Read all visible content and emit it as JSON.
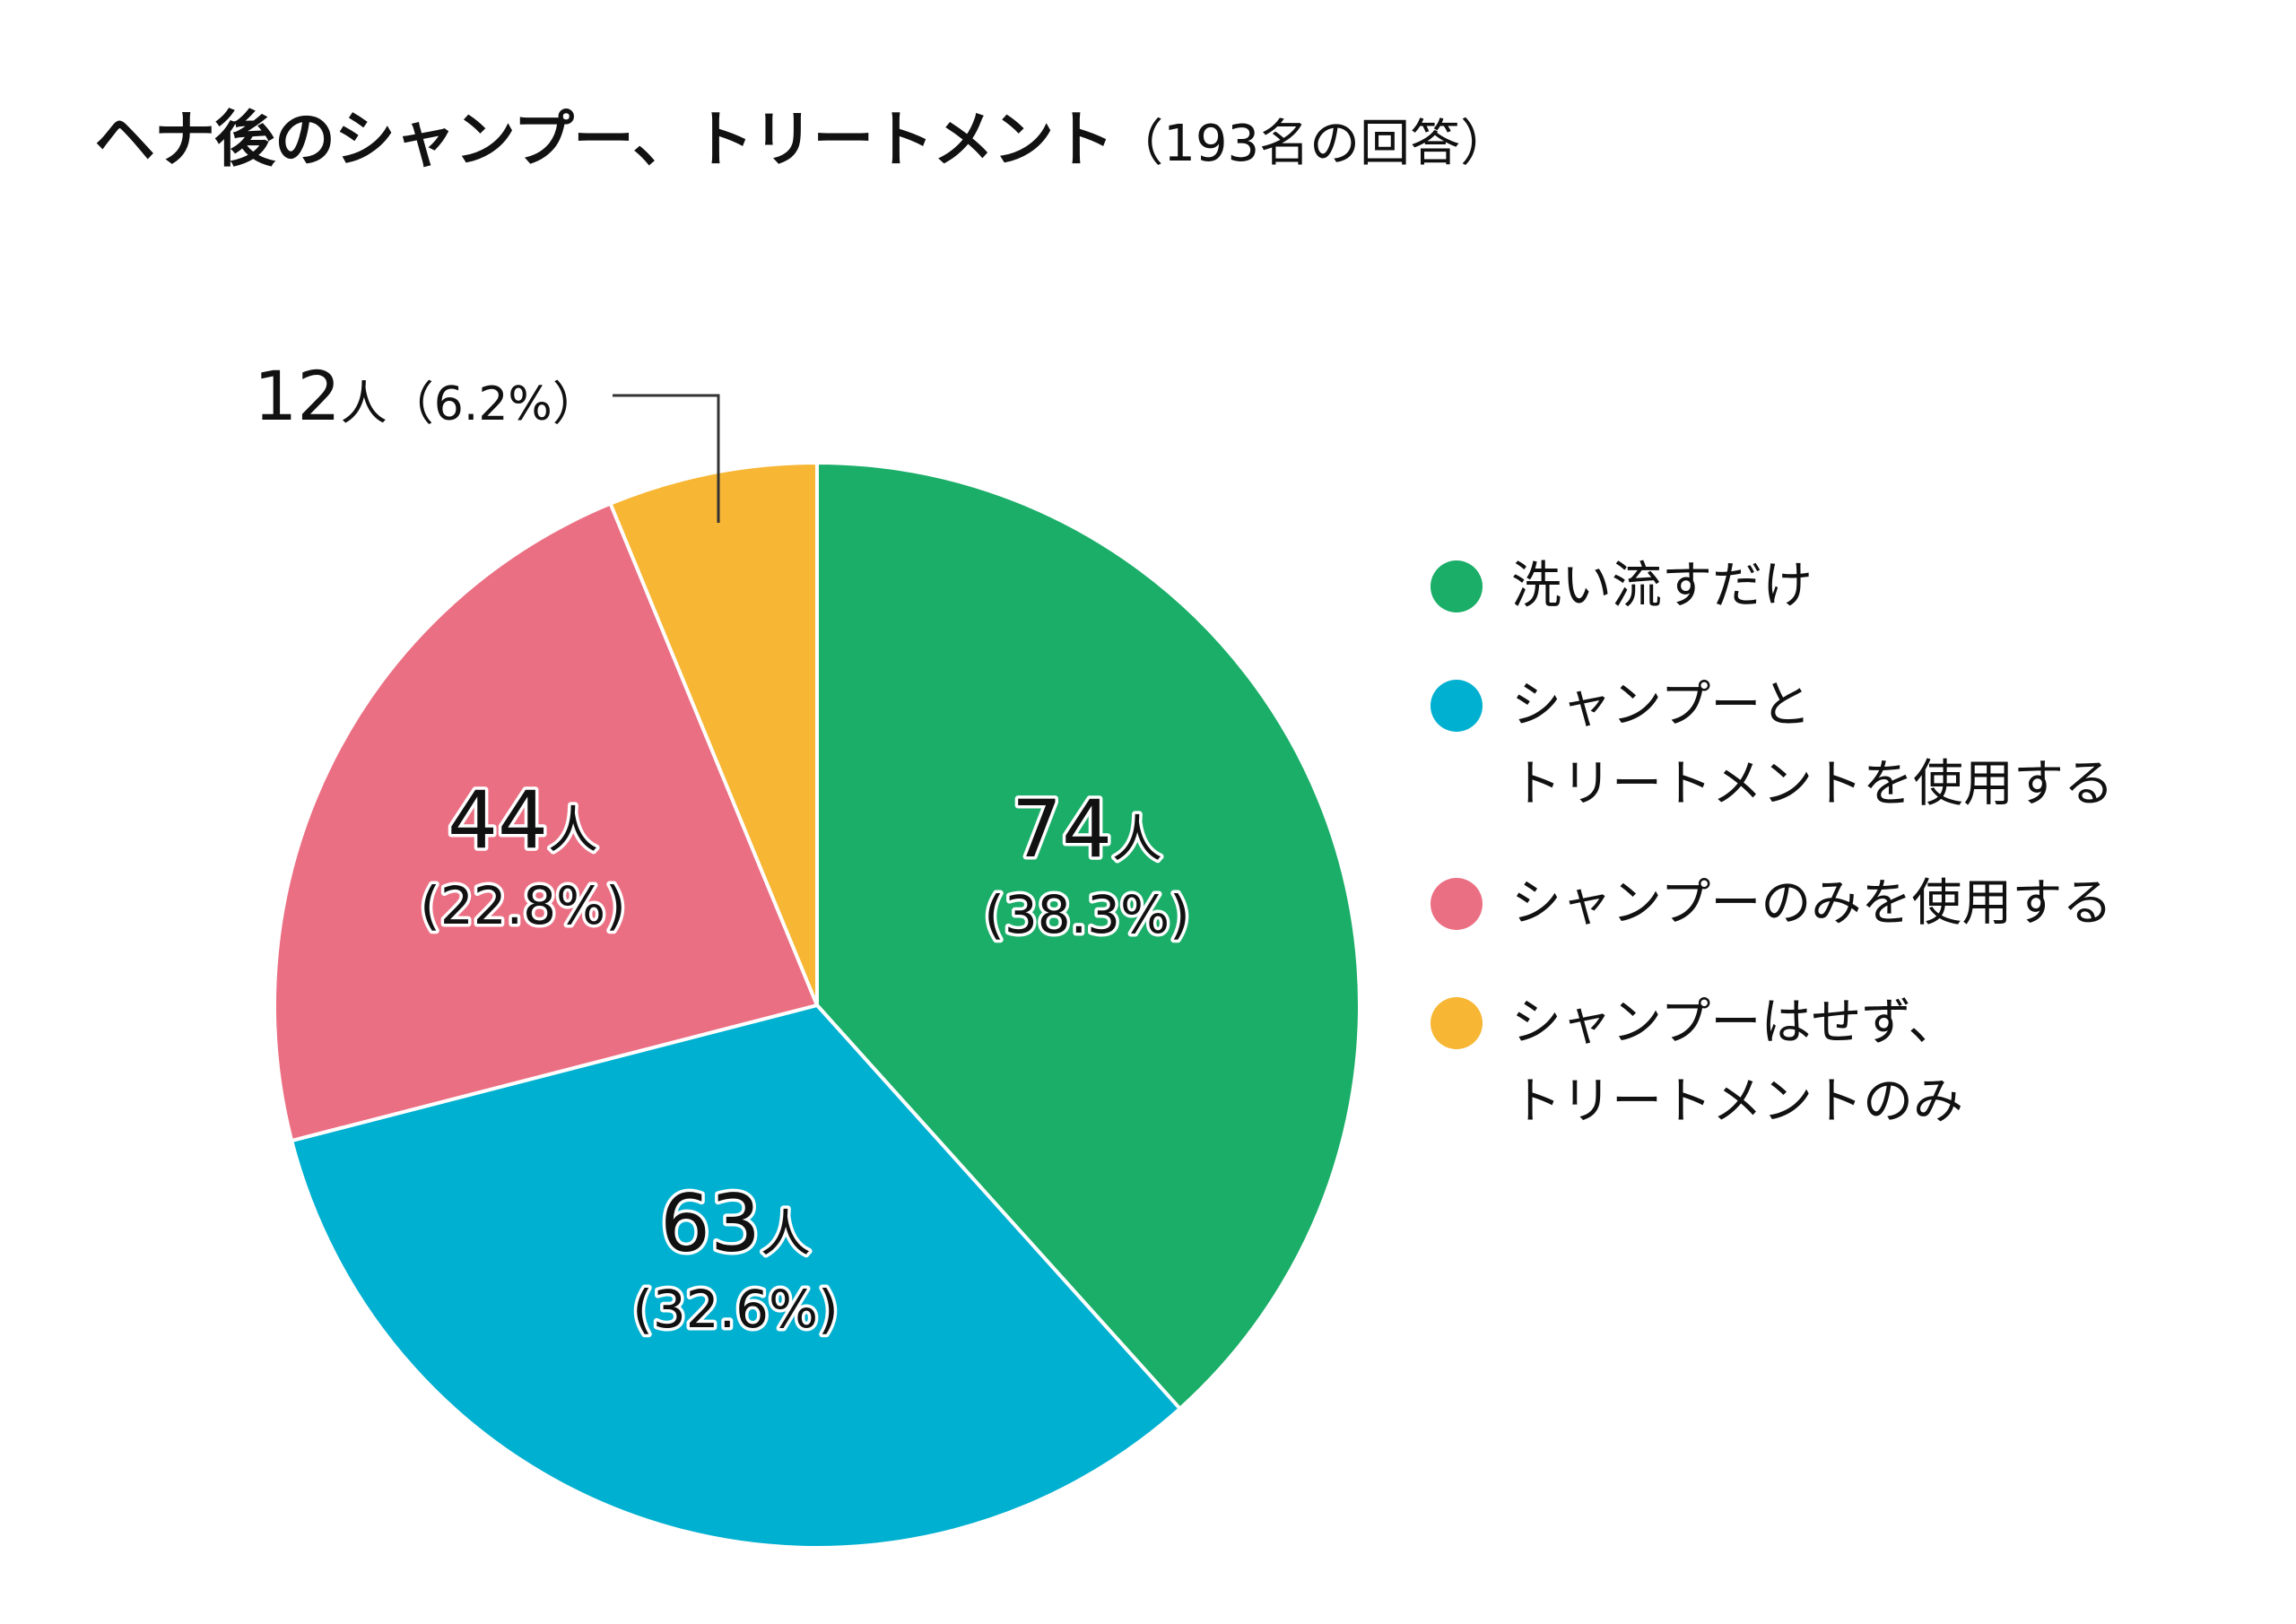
{
  "chart_data": {
    "type": "pie",
    "title": "ヘナ後のシャンプー、トリートメント",
    "subtitle": "（193名の回答）",
    "total": 193,
    "slices": [
      {
        "name": "洗い流すだけ",
        "value": 74,
        "percent": 38.3,
        "count_label": "74",
        "unit_label": "人",
        "percent_label": "(38.3%)",
        "color": "#1aae68"
      },
      {
        "name": "シャンプーと\nトリートメントを使用する",
        "value": 63,
        "percent": 32.6,
        "count_label": "63",
        "unit_label": "人",
        "percent_label": "(32.6%)",
        "color": "#00b0d0"
      },
      {
        "name": "シャンプーのみを使用する",
        "value": 44,
        "percent": 22.8,
        "count_label": "44",
        "unit_label": "人",
        "percent_label": "(22.8%)",
        "color": "#eb6f83"
      },
      {
        "name": "シャンプーはせず、\nトリートメントのみ",
        "value": 12,
        "percent": 6.2,
        "count_label": "12",
        "unit_label": "人",
        "percent_label": "（6.2%）",
        "color": "#f7b633"
      }
    ],
    "legend_position": "right",
    "start_angle": "12 o'clock",
    "direction": "clockwise"
  }
}
